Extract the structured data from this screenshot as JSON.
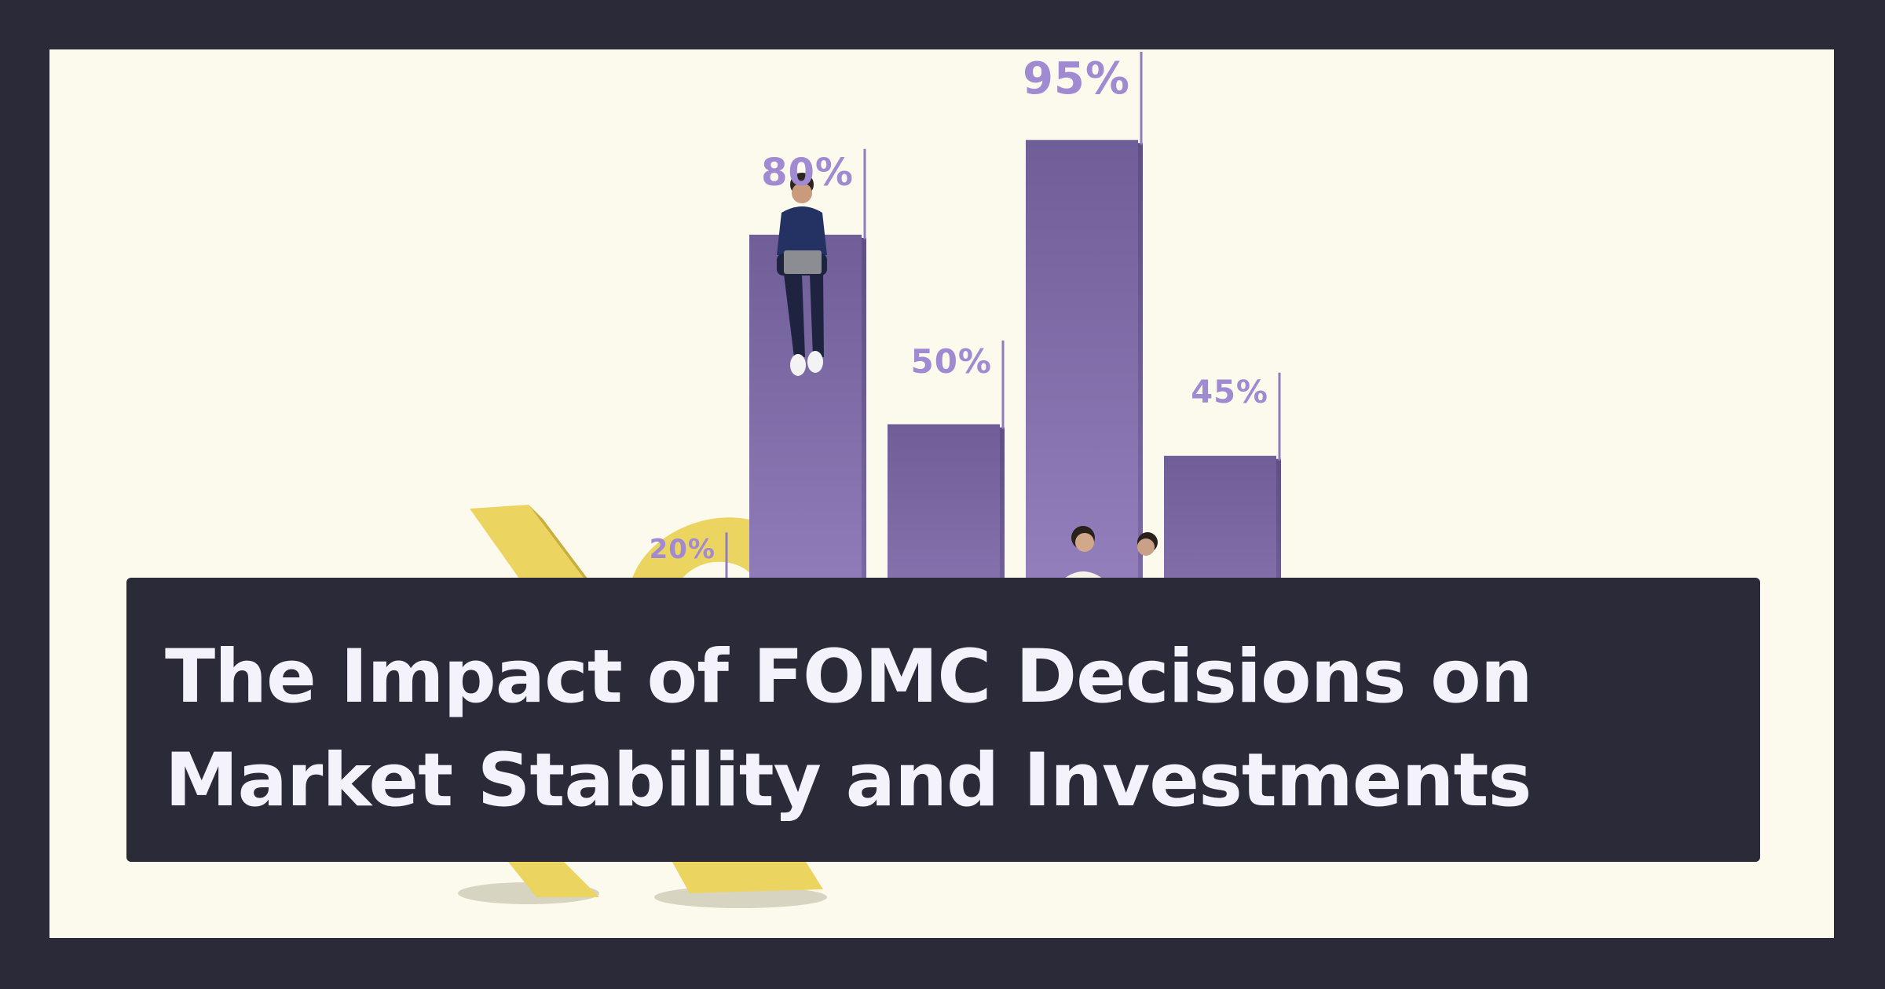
{
  "chart_data": {
    "type": "bar",
    "values": [
      20,
      80,
      50,
      95,
      45
    ],
    "data_labels": [
      "20%",
      "80%",
      "50%",
      "95%",
      "45%"
    ],
    "bar_color": "#7d68a8",
    "label_color": "#a08bd2"
  },
  "banner": {
    "title_line1": "The Impact of FOMC Decisions on",
    "title_line2": "Market Stability and Investments"
  },
  "colors": {
    "frame": "#2b2a38",
    "canvas": "#fcfaed",
    "accent_yellow": "#ecd460",
    "title_text": "#f4f2fb"
  }
}
